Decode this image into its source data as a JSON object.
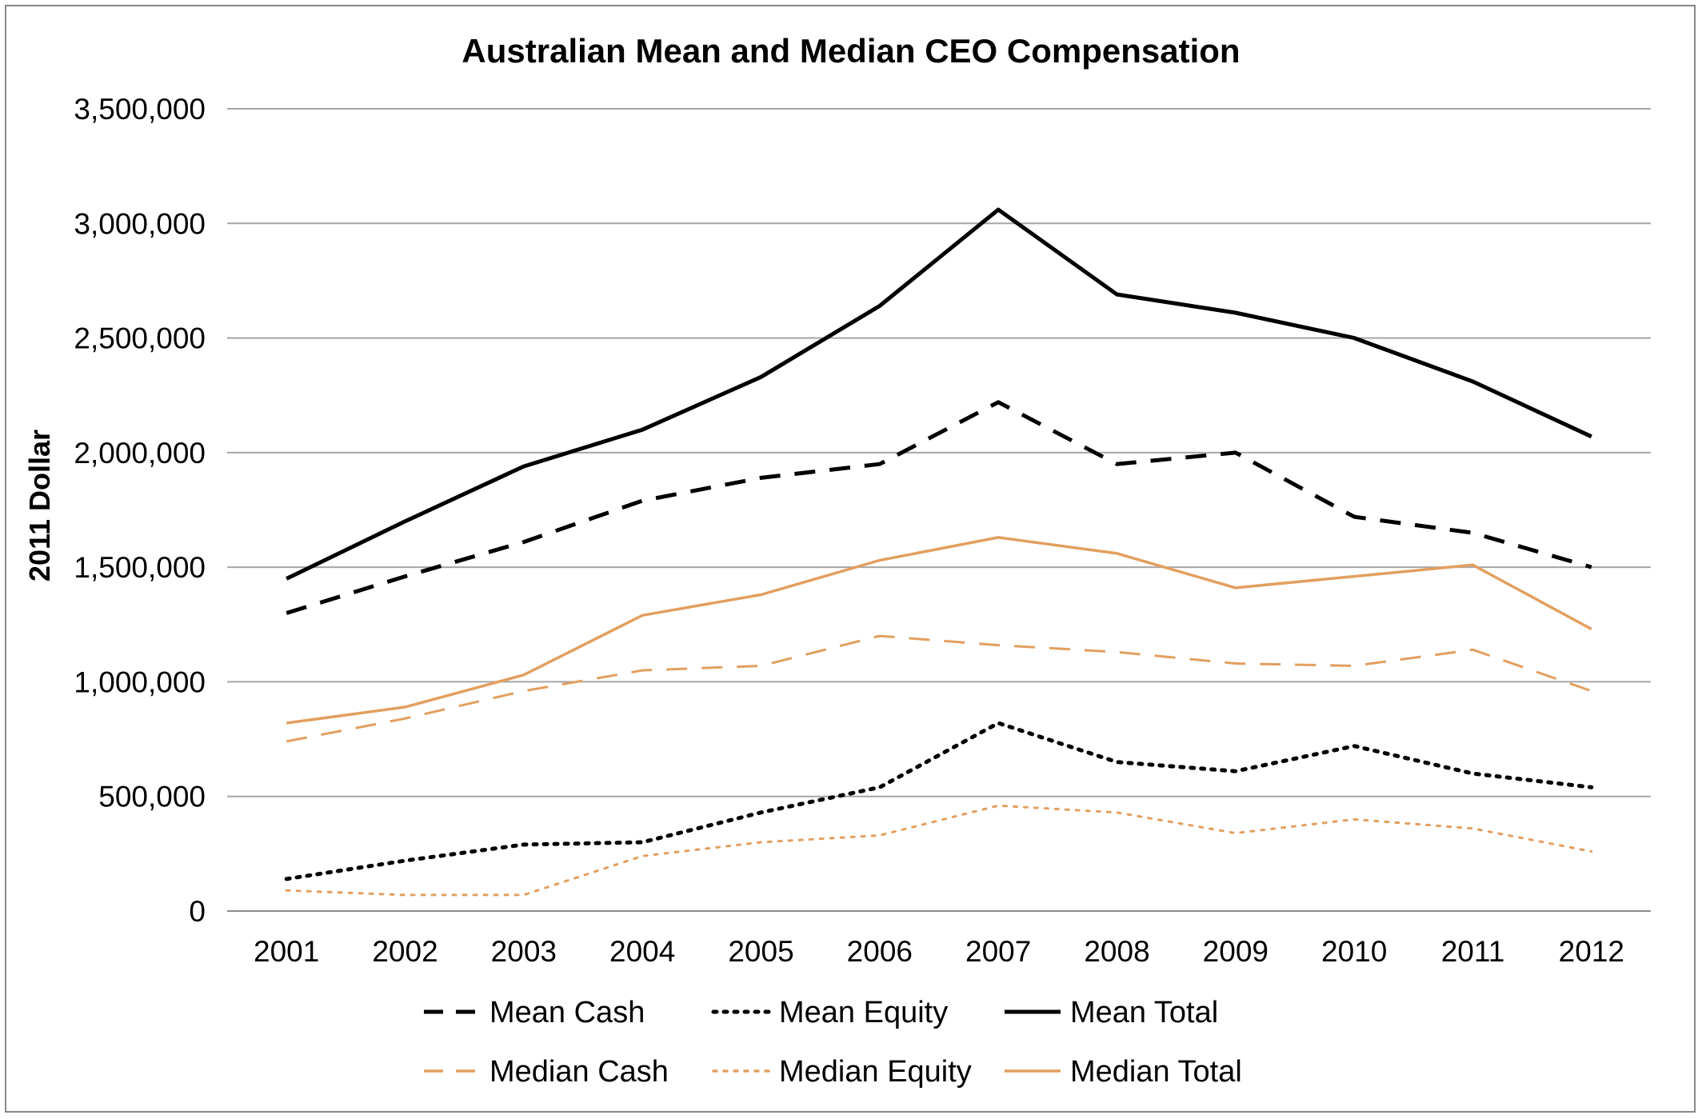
{
  "chart_data": {
    "type": "line",
    "title": "Australian Mean and Median CEO Compensation",
    "xlabel": "",
    "ylabel": "2011 Dollar",
    "categories": [
      "2001",
      "2002",
      "2003",
      "2004",
      "2005",
      "2006",
      "2007",
      "2008",
      "2009",
      "2010",
      "2011",
      "2012"
    ],
    "ylim": [
      0,
      3500000
    ],
    "yticks": [
      0,
      500000,
      1000000,
      1500000,
      2000000,
      2500000,
      3000000,
      3500000
    ],
    "ytick_labels": [
      "0",
      "500,000",
      "1,000,000",
      "1,500,000",
      "2,000,000",
      "2,500,000",
      "3,000,000",
      "3,500,000"
    ],
    "grid": "horizontal",
    "legend_position": "bottom",
    "series": [
      {
        "name": "Mean Cash",
        "color": "#000000",
        "style": "dashed",
        "values": [
          1300000,
          1460000,
          1610000,
          1790000,
          1890000,
          1950000,
          2220000,
          1950000,
          2000000,
          1720000,
          1650000,
          1500000
        ]
      },
      {
        "name": "Mean Equity",
        "color": "#000000",
        "style": "dotted",
        "values": [
          140000,
          220000,
          290000,
          300000,
          430000,
          540000,
          820000,
          650000,
          610000,
          720000,
          600000,
          540000
        ]
      },
      {
        "name": "Mean Total",
        "color": "#000000",
        "style": "solid",
        "values": [
          1450000,
          1700000,
          1940000,
          2100000,
          2330000,
          2640000,
          3060000,
          2690000,
          2610000,
          2500000,
          2310000,
          2070000
        ]
      },
      {
        "name": "Median Cash",
        "color": "#E29F5F",
        "style": "dashed",
        "values": [
          740000,
          840000,
          960000,
          1050000,
          1070000,
          1200000,
          1160000,
          1130000,
          1080000,
          1070000,
          1140000,
          960000
        ]
      },
      {
        "name": "Median Equity",
        "color": "#E29F5F",
        "style": "dotted",
        "values": [
          90000,
          70000,
          70000,
          240000,
          300000,
          330000,
          460000,
          430000,
          340000,
          400000,
          360000,
          260000
        ]
      },
      {
        "name": "Median Total",
        "color": "#E29F5F",
        "style": "solid",
        "values": [
          820000,
          890000,
          1030000,
          1290000,
          1380000,
          1530000,
          1630000,
          1560000,
          1410000,
          1460000,
          1510000,
          1230000
        ]
      }
    ]
  }
}
